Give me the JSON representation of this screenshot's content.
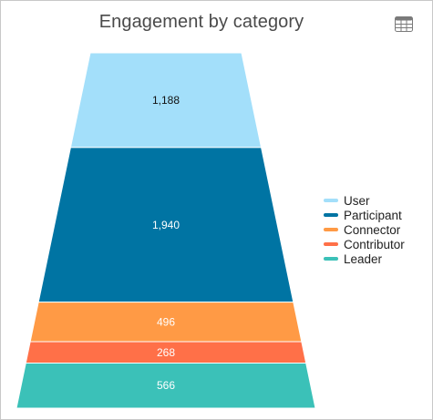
{
  "chart_data": {
    "type": "funnel",
    "title": "Engagement by category",
    "categories": [
      "User",
      "Participant",
      "Connector",
      "Contributor",
      "Leader"
    ],
    "values": [
      1188,
      1940,
      496,
      268,
      566
    ],
    "labels": [
      "1,188",
      "1,940",
      "496",
      "268",
      "566"
    ],
    "colors": [
      "#a3dffa",
      "#0074a3",
      "#ff9a45",
      "#ff7048",
      "#3bc1b8"
    ],
    "label_colors": [
      "#111111",
      "#ffffff",
      "#ffffff",
      "#ffffff",
      "#ffffff"
    ],
    "legend_position": "right"
  },
  "toolbar": {
    "table_icon": "table-icon"
  }
}
